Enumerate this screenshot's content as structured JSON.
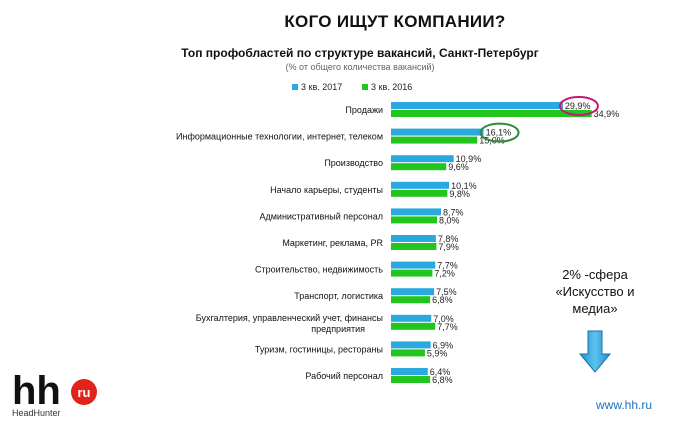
{
  "page_title": "КОГО ИЩУТ КОМПАНИИ?",
  "chart_data": {
    "type": "bar",
    "orientation": "horizontal",
    "title": "Топ профобластей по структуре вакансий, Санкт-Петербург",
    "subtitle": "(% от общего количества вакансий)",
    "legend_position": "top-left",
    "categories": [
      "Продажи",
      "Информационные технологии, интернет, телеком",
      "Производство",
      "Начало карьеры, студенты",
      "Административный персонал",
      "Маркетинг, реклама, PR",
      "Строительство, недвижимость",
      "Транспорт, логистика",
      "Бухгалтерия, управленческий учет, финансы предприятия",
      "Туризм, гостиницы, рестораны",
      "Рабочий персонал"
    ],
    "series": [
      {
        "name": "3 кв. 2017",
        "color": "#2aa9e0",
        "values": [
          29.9,
          16.1,
          10.9,
          10.1,
          8.7,
          7.8,
          7.7,
          7.5,
          7.0,
          6.9,
          6.4
        ],
        "labels": [
          "29,9%",
          "16,1%",
          "10,9%",
          "10,1%",
          "8,7%",
          "7,8%",
          "7,7%",
          "7,5%",
          "7,0%",
          "6,9%",
          "6,4%"
        ]
      },
      {
        "name": "3 кв. 2016",
        "color": "#22c41e",
        "values": [
          34.9,
          15.0,
          9.6,
          9.8,
          8.0,
          7.9,
          7.2,
          6.8,
          7.7,
          5.9,
          6.8
        ],
        "labels": [
          "34,9%",
          "15,0%",
          "9,6%",
          "9,8%",
          "8,0%",
          "7,9%",
          "7,2%",
          "6,8%",
          "7,7%",
          "5,9%",
          "6,8%"
        ]
      }
    ],
    "highlights": [
      {
        "category_index": 0,
        "series_index": 0,
        "color": "#c2187a"
      },
      {
        "category_index": 1,
        "series_index": 0,
        "color": "#2e8b3a"
      }
    ]
  },
  "note": {
    "line1": "2%  -сфера",
    "line2": "«Искусство и",
    "line3": "медиа»"
  },
  "logo": {
    "text": "hh",
    "badge": "ru",
    "subtext": "HeadHunter"
  },
  "website": "www.hh.ru"
}
